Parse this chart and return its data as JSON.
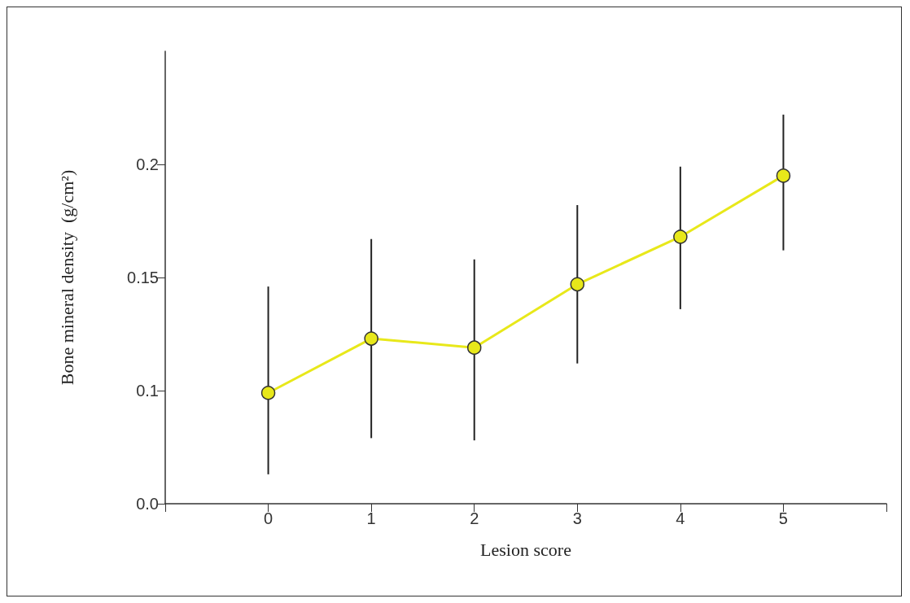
{
  "chart_data": {
    "type": "line",
    "xlabel": "Lesion score",
    "ylabel": "Bone mineral density  (g/cm²)",
    "x": [
      0,
      1,
      2,
      3,
      4,
      5
    ],
    "series": [
      {
        "color": "#e8e81a",
        "values": [
          0.099,
          0.123,
          0.119,
          0.147,
          0.168,
          0.195
        ],
        "errors": [
          [
            0.063,
            0.146
          ],
          [
            0.079,
            0.167
          ],
          [
            0.078,
            0.158
          ],
          [
            0.112,
            0.182
          ],
          [
            0.136,
            0.199
          ],
          [
            0.162,
            0.222
          ]
        ]
      }
    ],
    "xlim": [
      -1,
      6
    ],
    "xticks": [
      {
        "value": -1,
        "label": null
      },
      0,
      1,
      2,
      3,
      4,
      5,
      {
        "value": 6,
        "label": null
      }
    ],
    "ylim": [
      0.05,
      0.25
    ],
    "yticks": [
      {
        "value": 0.05,
        "label": "0.0"
      },
      {
        "value": 0.1,
        "label": "0.1"
      },
      0.15,
      0.2
    ],
    "marker": "circle",
    "line_style": "solid",
    "grid": false
  }
}
